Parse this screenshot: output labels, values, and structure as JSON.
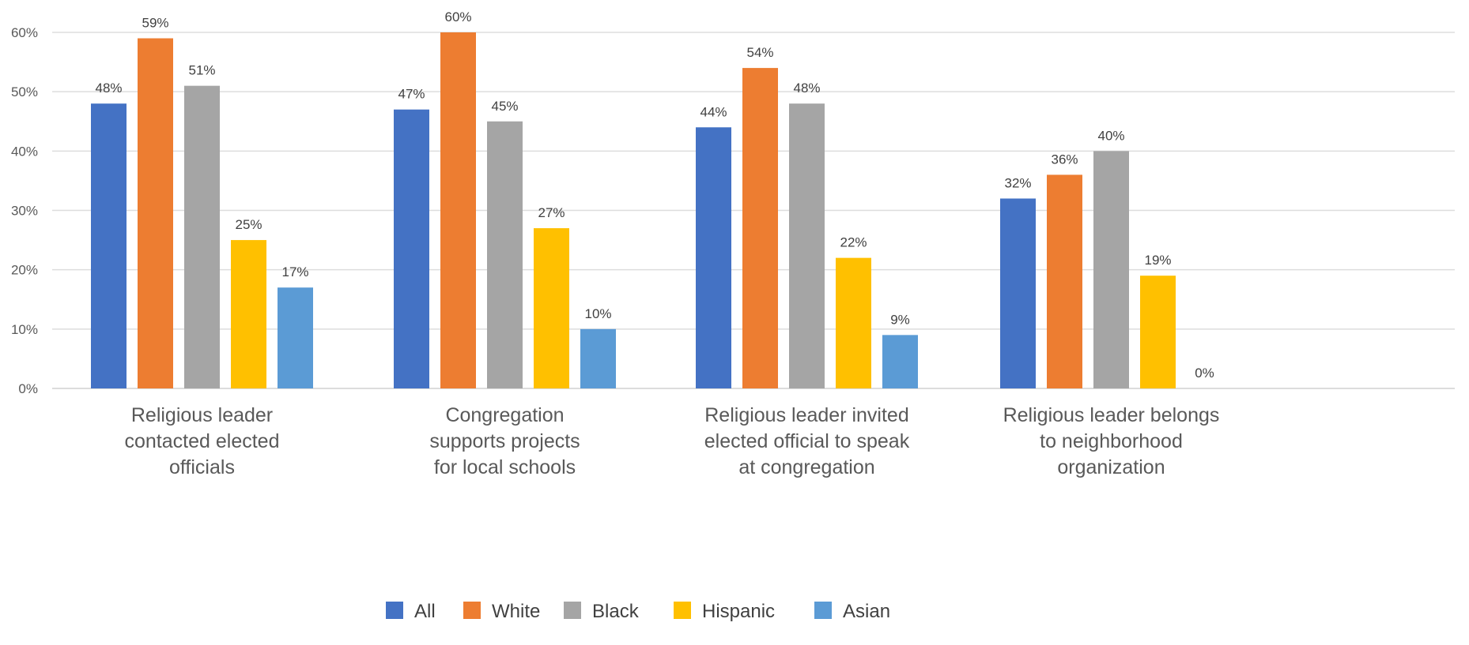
{
  "chart_data": {
    "type": "bar",
    "categories": [
      "Religious leader contacted elected officials",
      "Congregation supports projects for local schools",
      "Religious leader invited elected official to speak at congregation",
      "Religious leader belongs to neighborhood organization"
    ],
    "category_lines": [
      [
        "Religious leader",
        "contacted elected",
        "officials"
      ],
      [
        "Congregation",
        "supports projects",
        "for local schools"
      ],
      [
        "Religious leader invited",
        "elected official to speak",
        "at congregation"
      ],
      [
        "Religious leader belongs",
        "to neighborhood",
        "organization"
      ]
    ],
    "series": [
      {
        "name": "All",
        "color": "#4472C4",
        "values": [
          48,
          47,
          44,
          32
        ],
        "labels": [
          "48%",
          "47%",
          "44%",
          "32%"
        ]
      },
      {
        "name": "White",
        "color": "#ED7D31",
        "values": [
          59,
          60,
          54,
          36
        ],
        "labels": [
          "59%",
          "60%",
          "54%",
          "36%"
        ]
      },
      {
        "name": "Black",
        "color": "#A5A5A5",
        "values": [
          51,
          45,
          48,
          40
        ],
        "labels": [
          "51%",
          "45%",
          "48%",
          "40%"
        ]
      },
      {
        "name": "Hispanic",
        "color": "#FFC000",
        "values": [
          25,
          27,
          22,
          19
        ],
        "labels": [
          "25%",
          "27%",
          "22%",
          "19%"
        ]
      },
      {
        "name": "Asian",
        "color": "#5B9BD5",
        "values": [
          17,
          10,
          9,
          0
        ],
        "labels": [
          "17%",
          "10%",
          "9%",
          "0%"
        ]
      }
    ],
    "y_ticks": [
      0,
      10,
      20,
      30,
      40,
      50,
      60
    ],
    "y_tick_labels": [
      "0%",
      "10%",
      "20%",
      "30%",
      "40%",
      "50%",
      "60%"
    ],
    "ylim": [
      0,
      60
    ],
    "grid": true,
    "legend_position": "bottom"
  }
}
